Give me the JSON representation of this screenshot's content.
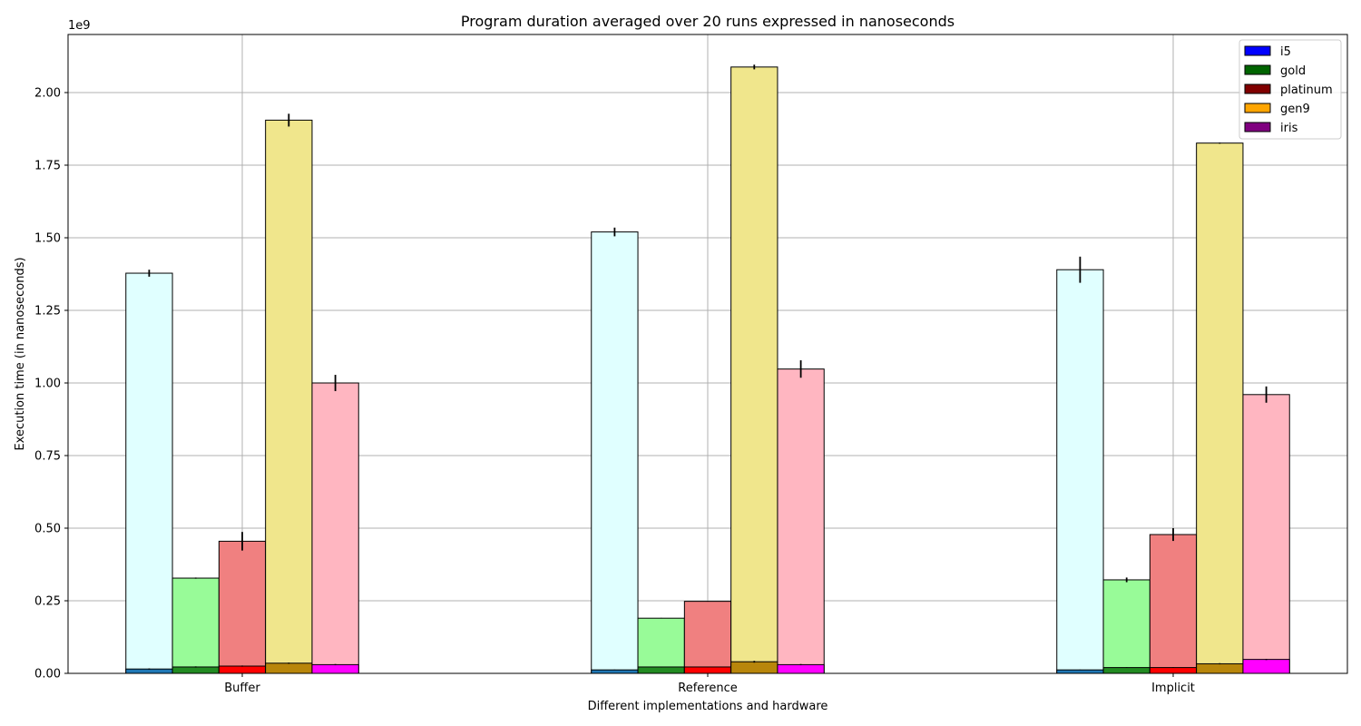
{
  "chart_data": {
    "type": "bar",
    "stacked": "segments per bar (bottom segment plus total)",
    "title": "Program duration averaged over 20 runs expressed in nanoseconds",
    "xlabel": "Different implementations and hardware",
    "ylabel": "Execution time (in nanoseconds)",
    "offset_text": "1e9",
    "ylim": [
      0,
      2200000000.0
    ],
    "yticks": [
      0,
      250000000.0,
      500000000.0,
      750000000.0,
      1000000000.0,
      1250000000.0,
      1500000000.0,
      1750000000.0,
      2000000000.0
    ],
    "ytick_labels": [
      "0.00",
      "0.25",
      "0.50",
      "0.75",
      "1.00",
      "1.25",
      "1.50",
      "1.75",
      "2.00"
    ],
    "grid": true,
    "legend_position": "top-right",
    "categories": [
      "Buffer",
      "Reference",
      "Implicit"
    ],
    "series": [
      {
        "name": "i5",
        "color": "#0000ff",
        "top_color": "#e0ffff",
        "bottom_color": "#1f77b4",
        "totals": [
          1378000000.0,
          1520000000.0,
          1390000000.0
        ],
        "errors": [
          12000000.0,
          15000000.0,
          45000000.0
        ],
        "bottoms": [
          15000000.0,
          12000000.0,
          12000000.0
        ],
        "bottom_errors": [
          2000000.0,
          1000000.0,
          1000000.0
        ]
      },
      {
        "name": "gold",
        "color": "#006400",
        "top_color": "#98fb98",
        "bottom_color": "#228b22",
        "totals": [
          328000000.0,
          190000000.0,
          322000000.0
        ],
        "errors": [
          2000000.0,
          1000000.0,
          8000000.0
        ],
        "bottoms": [
          22000000.0,
          22000000.0,
          20000000.0
        ],
        "bottom_errors": [
          2000000.0,
          1000000.0,
          1000000.0
        ]
      },
      {
        "name": "platinum",
        "color": "#800000",
        "top_color": "#f08080",
        "bottom_color": "#ff0000",
        "totals": [
          455000000.0,
          248000000.0,
          478000000.0
        ],
        "errors": [
          32000000.0,
          1000000.0,
          22000000.0
        ],
        "bottoms": [
          25000000.0,
          22000000.0,
          20000000.0
        ],
        "bottom_errors": [
          2000000.0,
          1000000.0,
          1000000.0
        ]
      },
      {
        "name": "gen9",
        "color": "#ffa500",
        "top_color": "#f0e68c",
        "bottom_color": "#b8860b",
        "totals": [
          1905000000.0,
          2088000000.0,
          1826000000.0
        ],
        "errors": [
          22000000.0,
          8000000.0,
          2000000.0
        ],
        "bottoms": [
          35000000.0,
          40000000.0,
          33000000.0
        ],
        "bottom_errors": [
          2000000.0,
          3000000.0,
          2000000.0
        ]
      },
      {
        "name": "iris",
        "color": "#800080",
        "top_color": "#ffb6c1",
        "bottom_color": "#ff00ff",
        "totals": [
          1000000000.0,
          1048000000.0,
          960000000.0
        ],
        "errors": [
          28000000.0,
          30000000.0,
          28000000.0
        ],
        "bottoms": [
          30000000.0,
          30000000.0,
          48000000.0
        ],
        "bottom_errors": [
          2000000.0,
          2000000.0,
          2000000.0
        ]
      }
    ]
  }
}
